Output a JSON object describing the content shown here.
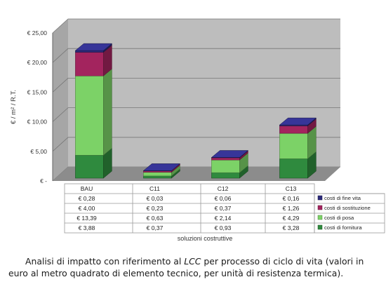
{
  "chart_data": {
    "type": "bar",
    "stacked": true,
    "three_d": true,
    "categories": [
      "BAU",
      "C11",
      "C12",
      "C13"
    ],
    "series": [
      {
        "name": "costi di fornitura",
        "color": "#2f8a3e",
        "values": [
          3.88,
          0.37,
          0.93,
          3.28
        ],
        "labels": [
          "€ 3,88",
          "€ 0,37",
          "€ 0,93",
          "€ 3,28"
        ]
      },
      {
        "name": "costi di posa",
        "color": "#7cd267",
        "values": [
          13.39,
          0.63,
          2.14,
          4.29
        ],
        "labels": [
          "€ 13,39",
          "€ 0,63",
          "€ 2,14",
          "€ 4,29"
        ]
      },
      {
        "name": "costi di sostituzione",
        "color": "#a3245e",
        "values": [
          4.0,
          0.23,
          0.37,
          1.26
        ],
        "labels": [
          "€ 4,00",
          "€ 0,23",
          "€ 0,37",
          "€ 1,26"
        ]
      },
      {
        "name": "costi di fine vita",
        "color": "#2c2a7a",
        "values": [
          0.28,
          0.03,
          0.06,
          0.16
        ],
        "labels": [
          "€ 0,28",
          "€ 0,03",
          "€ 0,06",
          "€ 0,16"
        ]
      }
    ],
    "table_row_order": [
      3,
      2,
      1,
      0
    ],
    "ylabel": "€ / m² / R.T.",
    "xlabel": "soluzioni costruttive",
    "ylim": [
      0,
      25
    ],
    "yticks": [
      0,
      5,
      10,
      15,
      20,
      25
    ],
    "ytick_labels": [
      "€ -",
      "€ 5,00",
      "€ 10,00",
      "€ 15,00",
      "€ 20,00",
      "€ 25,00"
    ],
    "grid": true,
    "legend": "table-right",
    "wall_color": "#bdbdbd",
    "floor_color": "#8c8c8c"
  },
  "caption": {
    "before_italic": "Analisi di impatto con riferimento al ",
    "italic": "LCC",
    "after_italic": " per processo di ciclo di vita (valori in euro al metro quadrato di elemento tecnico, per unità di resistenza termica)."
  }
}
